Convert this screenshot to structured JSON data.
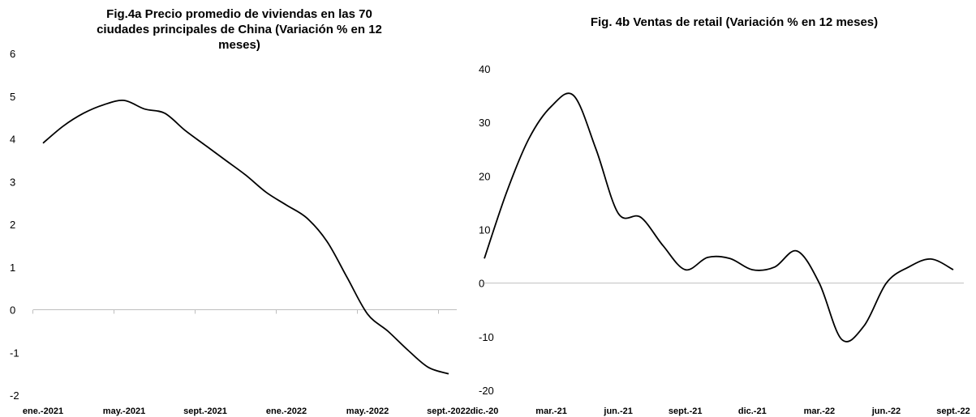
{
  "chart_data": [
    {
      "type": "line",
      "title": "Fig.4a Precio promedio de viviendas en las 70 ciudades principales de China (Variación % en 12 meses)",
      "categories": [
        "ene.-2021",
        null,
        null,
        null,
        "may.-2021",
        null,
        null,
        null,
        "sept.-2021",
        null,
        null,
        null,
        "ene.-2022",
        null,
        null,
        null,
        "may.-2022",
        null,
        null,
        null,
        "sept.-2022"
      ],
      "values": [
        3.9,
        4.3,
        4.6,
        4.8,
        4.9,
        4.7,
        4.6,
        4.2,
        3.85,
        3.5,
        3.15,
        2.75,
        2.45,
        2.15,
        1.6,
        0.75,
        -0.1,
        -0.5,
        -0.95,
        -1.35,
        -1.5
      ],
      "color": "#000000",
      "ylim": [
        -2,
        6
      ],
      "yticks": [
        -2,
        -1,
        0,
        1,
        2,
        3,
        4,
        5,
        6
      ]
    },
    {
      "type": "line",
      "title": "Fig. 4b Ventas de retail  (Variación % en 12 meses)",
      "categories": [
        "dic.-20",
        null,
        null,
        "mar.-21",
        null,
        null,
        "jun.-21",
        null,
        null,
        "sept.-21",
        null,
        null,
        "dic.-21",
        null,
        null,
        "mar.-22",
        null,
        null,
        "jun.-22",
        null,
        null,
        "sept.-22"
      ],
      "values": [
        4.6,
        17,
        27,
        33,
        35,
        25,
        13,
        12.3,
        7,
        2.5,
        4.8,
        4.6,
        2.5,
        3,
        6,
        0,
        -10.5,
        -8,
        0,
        3,
        4.5,
        2.5
      ],
      "color": "#000000",
      "ylim": [
        -20,
        40
      ],
      "yticks": [
        -20,
        -10,
        0,
        10,
        20,
        30,
        40
      ]
    }
  ]
}
